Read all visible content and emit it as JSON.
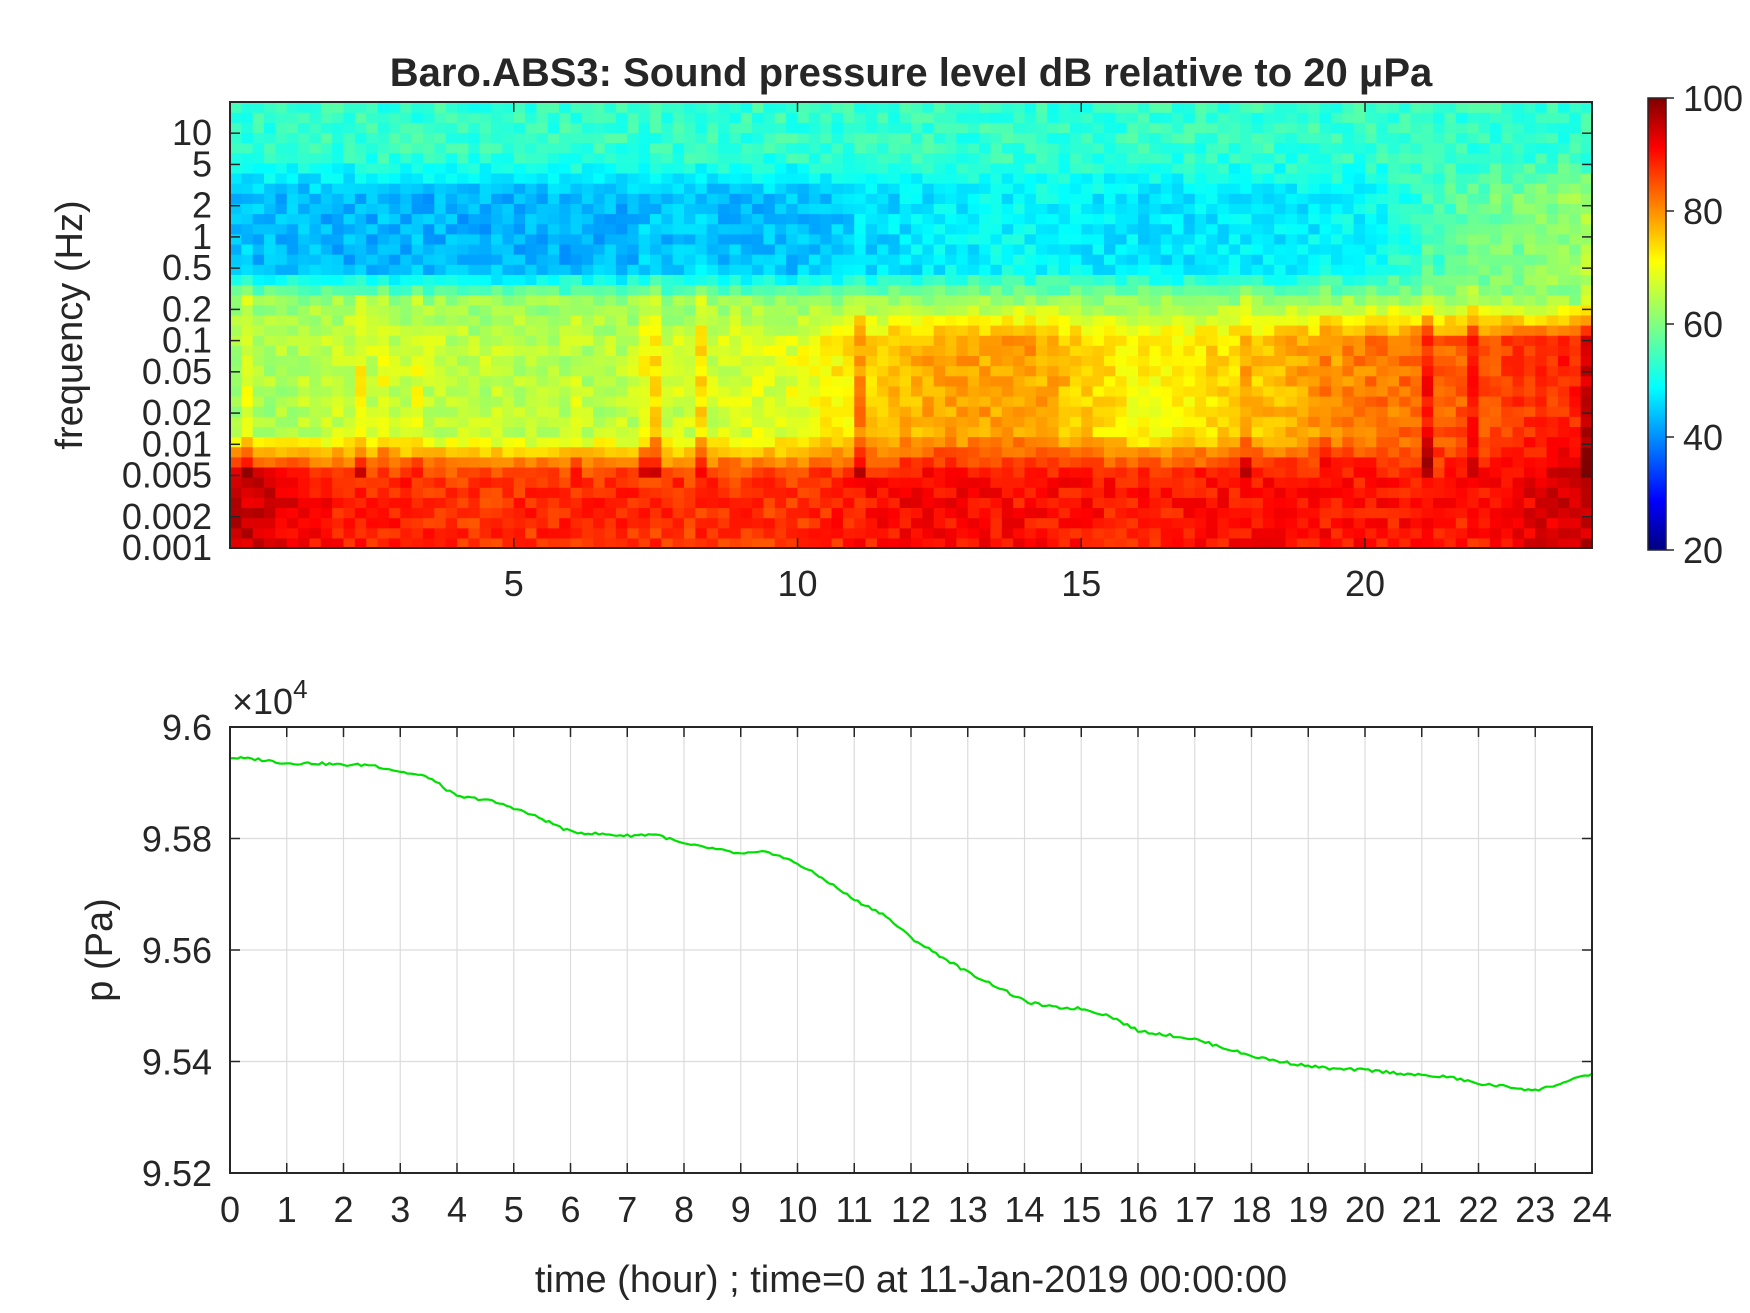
{
  "chart_data": [
    {
      "type": "heatmap",
      "title": "Baro.ABS3: Sound pressure level dB relative to 20 μPa",
      "ylabel": "frequency (Hz)",
      "xlabel": "",
      "x_range": [
        0,
        24
      ],
      "x_ticks": [
        5,
        10,
        15,
        20
      ],
      "y_scale": "log",
      "y_range": [
        0.001,
        20
      ],
      "y_ticks": [
        0.001,
        0.002,
        0.005,
        0.01,
        0.02,
        0.05,
        0.1,
        0.2,
        0.5,
        1,
        2,
        5,
        10
      ],
      "y_tick_labels": [
        "0.001",
        "0.002",
        "0.005",
        "0.01",
        "0.02",
        "0.05",
        "0.1",
        "0.2",
        "0.5",
        "1",
        "2",
        "5",
        "10"
      ],
      "colormap": "jet",
      "color_range": [
        20,
        100
      ],
      "colorbar_ticks": [
        20,
        40,
        60,
        80,
        100
      ],
      "colorbar_location": "right",
      "grid": false,
      "description_levels_db": {
        "hours": [
          0,
          2,
          4,
          6,
          8,
          10,
          12,
          14,
          16,
          18,
          20,
          22,
          24
        ],
        "low_band_0.001_0.005Hz": [
          95,
          88,
          86,
          87,
          86,
          86,
          90,
          89,
          88,
          89,
          89,
          88,
          95
        ],
        "mid_band_0.01_0.1Hz": [
          62,
          66,
          65,
          64,
          66,
          68,
          76,
          78,
          70,
          74,
          80,
          84,
          88
        ],
        "band_0.5_2Hz": [
          45,
          44,
          44,
          44,
          45,
          45,
          48,
          50,
          48,
          48,
          50,
          58,
          62
        ],
        "band_above_5Hz": [
          54,
          54,
          54,
          54,
          54,
          54,
          54,
          54,
          54,
          54,
          54,
          54,
          54
        ]
      }
    },
    {
      "type": "line",
      "title": "",
      "xlabel": "time (hour) ; time=0 at 11-Jan-2019 00:00:00",
      "ylabel": "p (Pa)",
      "x_range": [
        0,
        24
      ],
      "y_range": [
        95200,
        96000
      ],
      "x_ticks": [
        0,
        1,
        2,
        3,
        4,
        5,
        6,
        7,
        8,
        9,
        10,
        11,
        12,
        13,
        14,
        15,
        16,
        17,
        18,
        19,
        20,
        21,
        22,
        23,
        24
      ],
      "y_tick_labels": [
        "9.52",
        "9.54",
        "9.56",
        "9.58",
        "9.6"
      ],
      "y_tick_values": [
        95200,
        95400,
        95600,
        95800,
        96000
      ],
      "y_exponent_label": "×10",
      "y_exponent_power": "4",
      "grid": true,
      "series": [
        {
          "color": "#00e000",
          "x": [
            0,
            0.5,
            1,
            1.5,
            2,
            2.5,
            3,
            3.5,
            4,
            4.5,
            5,
            5.5,
            6,
            6.5,
            7,
            7.5,
            8,
            8.5,
            9,
            9.5,
            10,
            10.5,
            11,
            11.5,
            12,
            12.5,
            13,
            13.5,
            14,
            14.5,
            15,
            15.5,
            16,
            16.5,
            17,
            17.5,
            18,
            18.5,
            19,
            19.5,
            20,
            20.5,
            21,
            21.5,
            22,
            22.5,
            23,
            23.5,
            24
          ],
          "y": [
            95945,
            95942,
            95935,
            95935,
            95932,
            95932,
            95920,
            95910,
            95875,
            95870,
            95855,
            95835,
            95812,
            95808,
            95805,
            95808,
            95790,
            95782,
            95772,
            95776,
            95755,
            95725,
            95690,
            95665,
            95622,
            95590,
            95560,
            95535,
            95508,
            95497,
            95495,
            95482,
            95455,
            95448,
            95440,
            95425,
            95410,
            95400,
            95392,
            95386,
            95385,
            95380,
            95375,
            95372,
            95360,
            95355,
            95348,
            95362,
            95378
          ]
        }
      ]
    }
  ]
}
